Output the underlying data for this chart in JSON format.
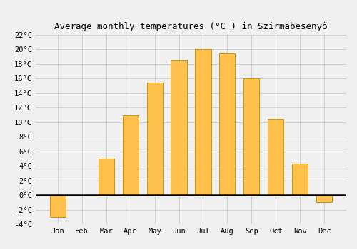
{
  "months": [
    "Jan",
    "Feb",
    "Mar",
    "Apr",
    "May",
    "Jun",
    "Jul",
    "Aug",
    "Sep",
    "Oct",
    "Nov",
    "Dec"
  ],
  "temperatures": [
    -3.0,
    0.0,
    5.0,
    11.0,
    15.5,
    18.5,
    20.0,
    19.5,
    16.0,
    10.5,
    4.3,
    -1.0
  ],
  "bar_color": "#FFC04C",
  "bar_edge_color": "#C8960A",
  "title": "Average monthly temperatures (°C ) in Szirmabesenyő",
  "title_fontsize": 9,
  "background_color": "#F0F0F0",
  "grid_color": "#CCCCCC",
  "ylim": [
    -4,
    22
  ],
  "yticks": [
    -4,
    -2,
    0,
    2,
    4,
    6,
    8,
    10,
    12,
    14,
    16,
    18,
    20,
    22
  ],
  "zero_line_color": "#000000",
  "font_family": "monospace"
}
